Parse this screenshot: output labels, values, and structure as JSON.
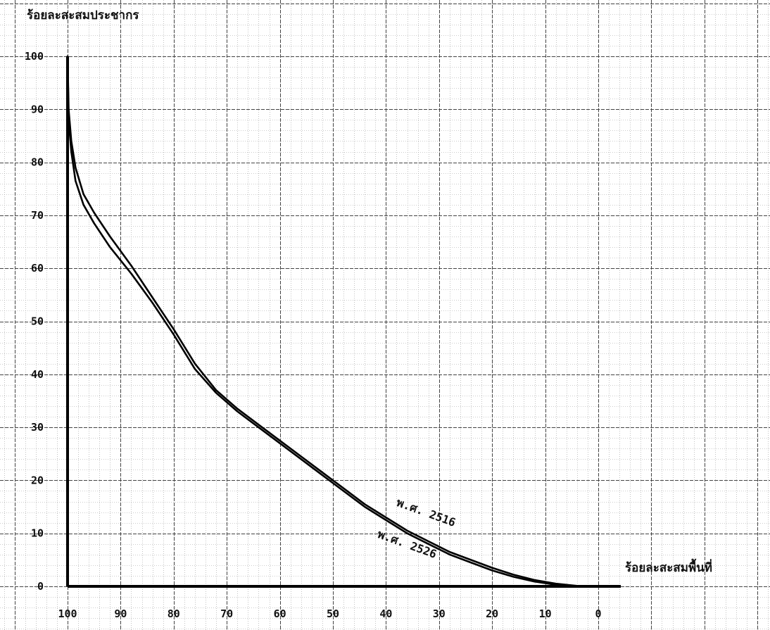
{
  "chart_data": {
    "type": "line",
    "ylabel": "ร้อยละสะสมประชากร",
    "xlabel": "ร้อยละสะสมพื้นที่",
    "xlim": [
      100,
      0
    ],
    "ylim": [
      0,
      100
    ],
    "x_ticks": [
      "100",
      "90",
      "80",
      "70",
      "60",
      "50",
      "40",
      "30",
      "20",
      "10",
      "0"
    ],
    "y_ticks": [
      "100",
      "90",
      "80",
      "70",
      "60",
      "50",
      "40",
      "30",
      "20",
      "10",
      "0"
    ],
    "grid": true,
    "series": [
      {
        "name": "พ.ศ. 2516",
        "x": [
          100,
          99.8,
          99.3,
          98.5,
          97,
          95,
          92,
          88,
          84,
          80,
          76,
          72,
          68,
          64,
          60,
          56,
          52,
          48,
          44,
          40,
          36,
          32,
          28,
          24,
          20,
          16,
          12,
          8,
          5,
          3
        ],
        "y": [
          100,
          90,
          84,
          79,
          74,
          70.5,
          66,
          60.5,
          54.5,
          48.5,
          42,
          37,
          33.5,
          30.5,
          27.5,
          24.5,
          21.5,
          18.5,
          15.5,
          13,
          10.5,
          8.5,
          6.5,
          5,
          3.5,
          2.2,
          1.2,
          0.5,
          0.2,
          0
        ]
      },
      {
        "name": "พ.ศ. 2526",
        "x": [
          100,
          99.8,
          99.3,
          98.5,
          97,
          95,
          92,
          88,
          84,
          80,
          76,
          72,
          68,
          64,
          60,
          56,
          52,
          48,
          44,
          40,
          36,
          32,
          28,
          24,
          20,
          16,
          12,
          8,
          5,
          3
        ],
        "y": [
          100,
          88,
          82,
          76.5,
          72,
          68.5,
          64,
          59,
          53.5,
          47.5,
          41,
          36.5,
          33,
          30,
          27,
          24,
          21,
          18,
          15,
          12.5,
          10,
          8,
          6,
          4.5,
          3,
          1.8,
          0.9,
          0.3,
          0.1,
          0
        ]
      }
    ]
  }
}
